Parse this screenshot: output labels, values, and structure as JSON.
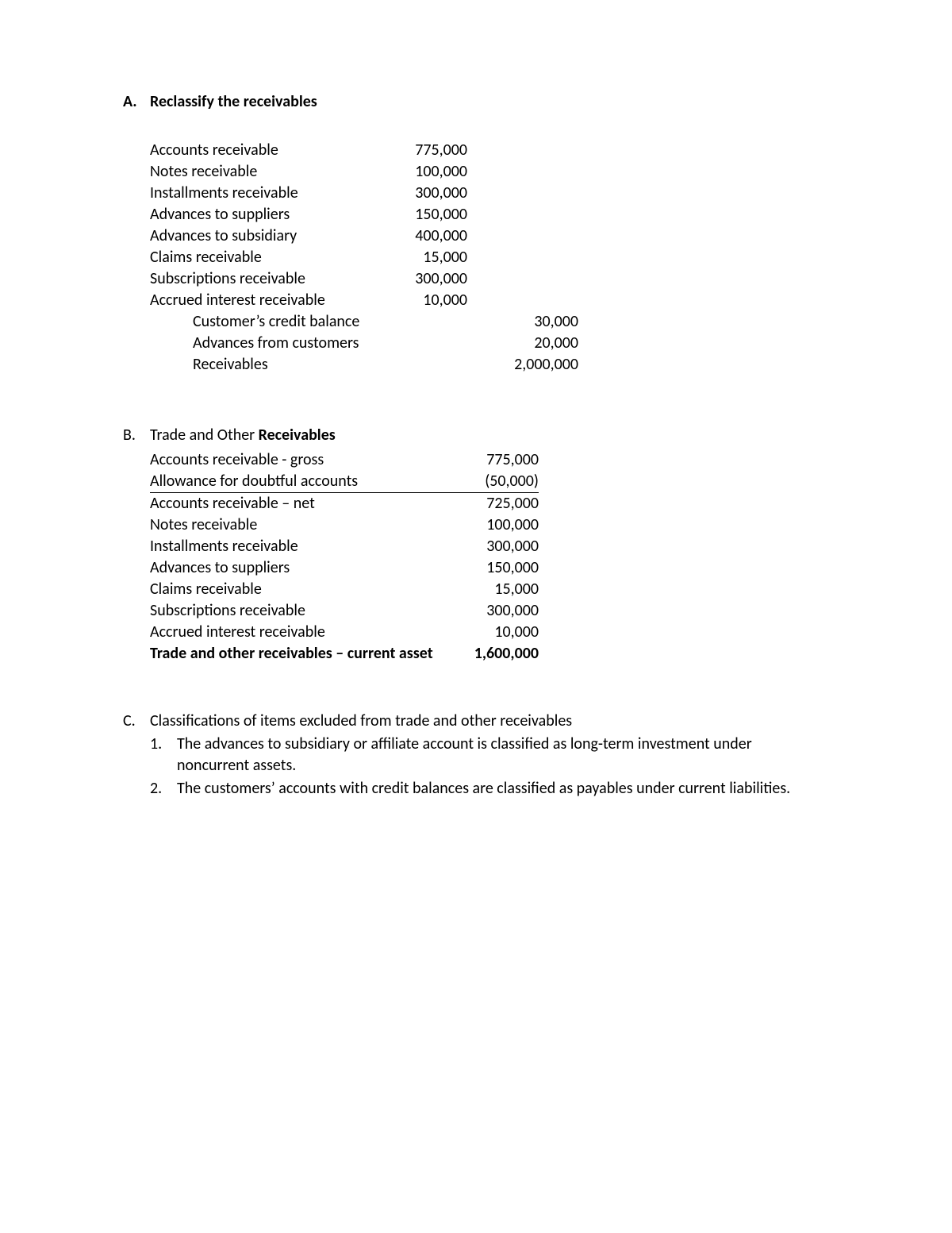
{
  "sectionA": {
    "marker": "A.",
    "title": "Reclassify the receivables",
    "rows": [
      {
        "label": "Accounts receivable",
        "col1": "775,000",
        "col2": "",
        "indent": false
      },
      {
        "label": "Notes receivable",
        "col1": "100,000",
        "col2": "",
        "indent": false
      },
      {
        "label": "Installments receivable",
        "col1": "300,000",
        "col2": "",
        "indent": false
      },
      {
        "label": "Advances to suppliers",
        "col1": "150,000",
        "col2": "",
        "indent": false
      },
      {
        "label": "Advances to subsidiary",
        "col1": "400,000",
        "col2": "",
        "indent": false
      },
      {
        "label": "Claims receivable",
        "col1": "15,000",
        "col2": "",
        "indent": false
      },
      {
        "label": "Subscriptions receivable",
        "col1": "300,000",
        "col2": "",
        "indent": false
      },
      {
        "label": "Accrued interest receivable",
        "col1": "10,000",
        "col2": "",
        "indent": false
      },
      {
        "label": "Customer’s credit balance",
        "col1": "",
        "col2": "30,000",
        "indent": true
      },
      {
        "label": "Advances from customers",
        "col1": "",
        "col2": "20,000",
        "indent": true
      },
      {
        "label": "Receivables",
        "col1": "",
        "col2": "2,000,000",
        "indent": true
      }
    ]
  },
  "sectionB": {
    "marker": "B.",
    "titlePlain": "Trade and Other ",
    "titleBold": "Receivables",
    "rows": [
      {
        "label": "Accounts receivable - gross",
        "value": "775,000",
        "underline": false,
        "bold": false
      },
      {
        "label": "Allowance for doubtful accounts",
        "value": "(50,000)",
        "underline": true,
        "bold": false
      },
      {
        "label": "Accounts receivable – net",
        "value": "725,000",
        "underline": false,
        "bold": false
      },
      {
        "label": "Notes receivable",
        "value": "100,000",
        "underline": false,
        "bold": false
      },
      {
        "label": "Installments receivable",
        "value": "300,000",
        "underline": false,
        "bold": false
      },
      {
        "label": "Advances to suppliers",
        "value": "150,000",
        "underline": false,
        "bold": false
      },
      {
        "label": "Claims receivable",
        "value": "15,000",
        "underline": false,
        "bold": false
      },
      {
        "label": "Subscriptions receivable",
        "value": "300,000",
        "underline": false,
        "bold": false
      },
      {
        "label": "Accrued interest receivable",
        "value": "10,000",
        "underline": false,
        "bold": false
      },
      {
        "label": "Trade and other receivables – current asset",
        "value": "1,600,000",
        "underline": false,
        "bold": true
      }
    ]
  },
  "sectionC": {
    "marker": "C.",
    "title": "Classifications of items excluded from trade and other receivables",
    "items": [
      {
        "num": "1.",
        "text": "The advances to subsidiary or affiliate account is classified as long-term investment under noncurrent assets."
      },
      {
        "num": "2.",
        "text": "The customers’ accounts with credit balances are classified as payables under current liabilities."
      }
    ]
  },
  "style": {
    "background_color": "#ffffff",
    "text_color": "#000000",
    "font_family": "Calibri",
    "font_size_pt": 15,
    "line_color": "#000000"
  }
}
